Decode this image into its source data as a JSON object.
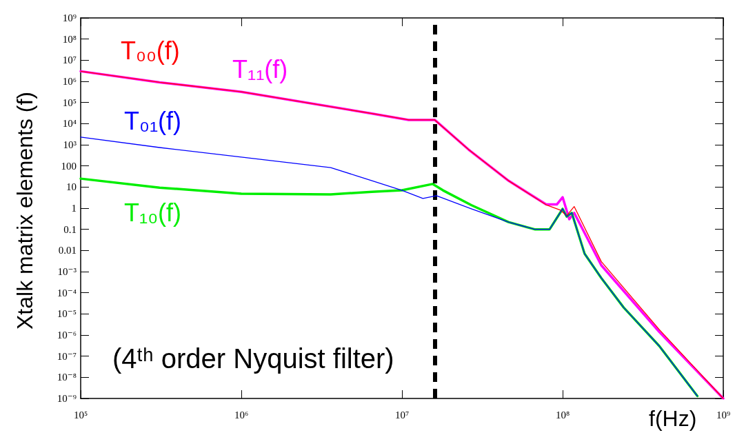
{
  "chart_data": {
    "type": "line",
    "xlabel": "f(Hz)",
    "ylabel": "Xtalk matrix elements (f)",
    "log": "xy",
    "grid": false,
    "legend": false,
    "marker": "none",
    "xlim": [
      100000,
      1000000000
    ],
    "xticks": [
      {
        "value": 100000,
        "label": "10⁵"
      },
      {
        "value": 1000000,
        "label": "10⁶"
      },
      {
        "value": 10000000,
        "label": "10⁷"
      },
      {
        "value": 100000000,
        "label": "10⁸"
      },
      {
        "value": 1000000000,
        "label": "10⁹"
      }
    ],
    "ylim": [
      1e-09,
      1000000000
    ],
    "yticks": [
      {
        "value": 1e-09,
        "label": "10⁻⁹"
      },
      {
        "value": 1e-08,
        "label": "10⁻⁸"
      },
      {
        "value": 1e-07,
        "label": "10⁻⁷"
      },
      {
        "value": 1e-06,
        "label": "10⁻⁶"
      },
      {
        "value": 1e-05,
        "label": "10⁻⁵"
      },
      {
        "value": 0.0001,
        "label": "10⁻⁴"
      },
      {
        "value": 0.001,
        "label": "10⁻³"
      },
      0.01,
      0.1,
      1,
      10,
      100,
      {
        "value": 1000,
        "label": "10³"
      },
      {
        "value": 10000,
        "label": "10⁴"
      },
      {
        "value": 100000,
        "label": "10⁵"
      },
      {
        "value": 1000000,
        "label": "10⁶"
      },
      {
        "value": 10000000,
        "label": "10⁷"
      },
      {
        "value": 100000000,
        "label": "10⁸"
      },
      {
        "value": 1000000000,
        "label": "10⁹"
      }
    ],
    "series": [
      {
        "name": "T₀₀(f)",
        "color": "#ff0000",
        "x": [
          100000,
          310000,
          1000000,
          6500000,
          11000000,
          16000000,
          26000000,
          46000000,
          79000000,
          97000000,
          106000000,
          118000000,
          174000000,
          400000000,
          1000000000
        ],
        "values": [
          3000000,
          900000,
          320000,
          30000,
          15000,
          15000,
          590,
          20,
          1.45,
          0.8,
          0.44,
          1.2,
          0.003,
          1.8e-06,
          1e-09
        ]
      },
      {
        "name": "T₁₁(f)",
        "color": "#ff00ff",
        "x": [
          100000,
          310000,
          1000000,
          6500000,
          11000000,
          16000000,
          26000000,
          46000000,
          79000000,
          92000000,
          100000000,
          110000000,
          118000000,
          174000000,
          400000000,
          1000000000
        ],
        "values": [
          3000000,
          900000,
          320000,
          30000,
          15000,
          15000,
          590,
          20,
          1.5,
          1.5,
          3.3,
          0.3,
          0.6,
          0.002,
          1.4e-06,
          1e-09
        ]
      },
      {
        "name": "T₀₁(f)",
        "color": "#0000ff",
        "x": [
          100000,
          310000,
          1000000,
          3600000,
          6500000,
          10000000,
          13500000,
          16400000,
          27000000,
          46000000,
          67000000,
          83000000,
          100000000,
          106000000,
          114000000,
          137000000,
          174000000,
          240000000,
          400000000,
          690000000
        ],
        "values": [
          2300,
          740,
          260,
          83,
          20,
          7,
          2.9,
          3.9,
          0.93,
          0.22,
          0.1,
          0.1,
          0.93,
          0.4,
          0.6,
          0.007,
          0.0005,
          2e-05,
          3e-07,
          1.3e-09
        ]
      },
      {
        "name": "T₁₀(f)",
        "color": "#00ee00",
        "x": [
          100000,
          310000,
          1000000,
          3600000,
          6500000,
          10000000,
          15500000,
          18000000,
          27000000,
          46000000,
          67000000,
          83000000,
          100000000,
          106000000,
          114000000,
          137000000,
          174000000,
          240000000,
          400000000,
          690000000
        ],
        "values": [
          25,
          9.4,
          4.8,
          4.5,
          6,
          7,
          14,
          7,
          1.4,
          0.22,
          0.1,
          0.1,
          0.93,
          0.4,
          0.6,
          0.007,
          0.0005,
          2e-05,
          3e-07,
          1.3e-09
        ]
      }
    ],
    "ref_lines": [
      {
        "axis": "x",
        "value": 16000000,
        "color": "#000000",
        "line_style": "dashed"
      }
    ],
    "annotations": [
      "(4ᵗʰ order Nyquist filter)"
    ]
  }
}
